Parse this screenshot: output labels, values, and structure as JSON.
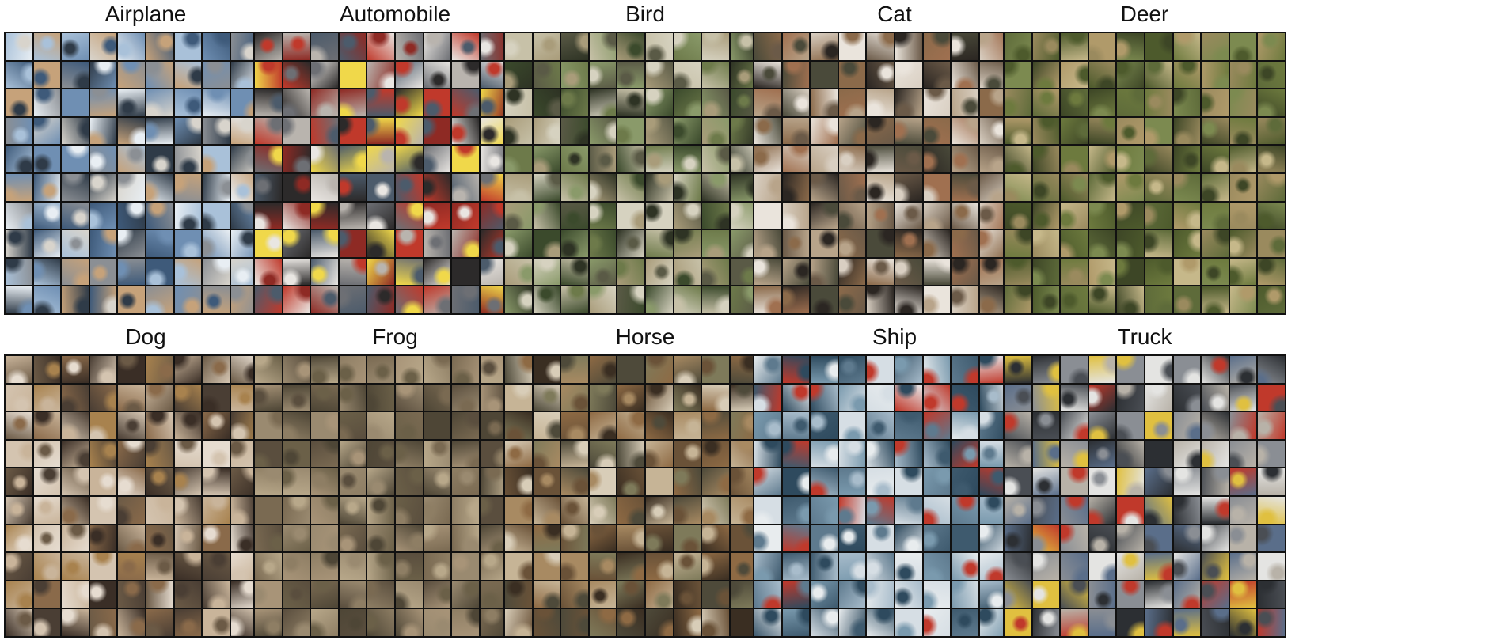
{
  "figure": {
    "grid_size": 10,
    "panels": [
      {
        "id": "airplane",
        "title": "Airplane",
        "palette": [
          "#6f8fb3",
          "#a9c1d9",
          "#3e5a7a",
          "#d8d4cc",
          "#8b8f94",
          "#c6a27a",
          "#e8eef3",
          "#2f3b48"
        ]
      },
      {
        "id": "automobile",
        "title": "Automobile",
        "palette": [
          "#b9b4ae",
          "#8e2a24",
          "#2c2a2a",
          "#e9e6e2",
          "#6d6f74",
          "#c0392b",
          "#f0d84a",
          "#4c5b6b"
        ]
      },
      {
        "id": "bird",
        "title": "Bird",
        "palette": [
          "#6d7a4a",
          "#a99c7a",
          "#3b4a2c",
          "#c7c1a8",
          "#8a9a6a",
          "#5a5a46",
          "#d6d2c0",
          "#2e3324"
        ]
      },
      {
        "id": "cat",
        "title": "Cat",
        "palette": [
          "#6b5a48",
          "#2b2622",
          "#b8a48a",
          "#8b6a4a",
          "#d9cfc2",
          "#4a4a3a",
          "#a07050",
          "#eae4dc"
        ]
      },
      {
        "id": "deer",
        "title": "Deer",
        "palette": [
          "#6d7a3e",
          "#9a8a5e",
          "#4d5a2c",
          "#b09a6a",
          "#7c8a50",
          "#3d4626",
          "#c6b88a",
          "#5e6b3a"
        ]
      },
      {
        "id": "dog",
        "title": "Dog",
        "palette": [
          "#8a6a4a",
          "#c9b49a",
          "#3a2e26",
          "#e6dcd0",
          "#6b5a46",
          "#a8824e",
          "#d4c4b0",
          "#4a3e34"
        ]
      },
      {
        "id": "frog",
        "title": "Frog",
        "palette": [
          "#7a6a52",
          "#a89478",
          "#5a4e3e",
          "#8e7e64",
          "#6b6048",
          "#b8a88a",
          "#4e4636",
          "#9a8a70"
        ]
      },
      {
        "id": "horse",
        "title": "Horse",
        "palette": [
          "#6a5238",
          "#a88a62",
          "#3a2e22",
          "#c6b496",
          "#7e7a5a",
          "#4e4a3a",
          "#d8cdb8",
          "#8e6a44"
        ]
      },
      {
        "id": "ship",
        "title": "Ship",
        "palette": [
          "#5e7a8e",
          "#a8bccb",
          "#2e4a5e",
          "#d6dee4",
          "#7a9aae",
          "#c0392b",
          "#e8ecee",
          "#3e5a6e"
        ]
      },
      {
        "id": "truck",
        "title": "Truck",
        "palette": [
          "#8a8e94",
          "#c0392b",
          "#2c2f33",
          "#e4e4e2",
          "#5a6e8a",
          "#b8b2a8",
          "#e0c040",
          "#4a4e54"
        ]
      }
    ]
  }
}
